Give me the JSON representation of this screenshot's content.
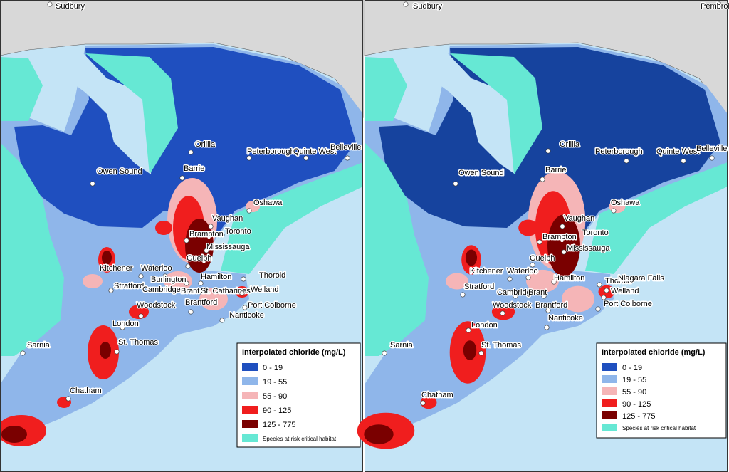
{
  "panels": [
    {
      "cities": [
        "Sudbury",
        "Orillia",
        "Peterborough",
        "Quinte West",
        "Belleville",
        "Owen Sound",
        "Barrie",
        "Oshawa",
        "Vaughan",
        "Toronto",
        "Brampton",
        "Mississauga",
        "Guelph",
        "Kitchener",
        "Waterloo",
        "Hamilton",
        "Thorold",
        "Burlington",
        "Stratford",
        "Cambridge",
        "Brant",
        "St. Catharines",
        "Welland",
        "Port Colborne",
        "Woodstock",
        "Brantford",
        "Nanticoke",
        "London",
        "St. Thomas",
        "Sarnia",
        "Chatham"
      ],
      "legend": {
        "title": "Interpolated chloride (mg/L)",
        "classes": [
          "0 - 19",
          "19 - 55",
          "55 - 90",
          "90 - 125",
          "125 - 775"
        ],
        "habitat": "Species at risk critical habitat"
      }
    },
    {
      "cities": [
        "Sudbury",
        "Pembroke",
        "Orillia",
        "Peterborough",
        "Quinte West",
        "Belleville",
        "Owen Sound",
        "Barrie",
        "Oshawa",
        "Vaughan",
        "Toronto",
        "Brampton",
        "Mississauga",
        "Guelph",
        "Kitchener",
        "Waterloo",
        "Hamilton",
        "Thorold",
        "Niagara Falls",
        "Stratford",
        "Cambridge",
        "Brant",
        "Welland",
        "Woodstock",
        "Brantford",
        "Port Colborne",
        "London",
        "Nanticoke",
        "St. Thomas",
        "Sarnia",
        "Chatham"
      ],
      "legend": {
        "title": "Interpolated chloride (mg/L)",
        "classes": [
          "0 - 19",
          "19 - 55",
          "55 - 90",
          "90 - 125",
          "125 - 775"
        ],
        "habitat": "Species at risk critical habitat"
      }
    }
  ]
}
